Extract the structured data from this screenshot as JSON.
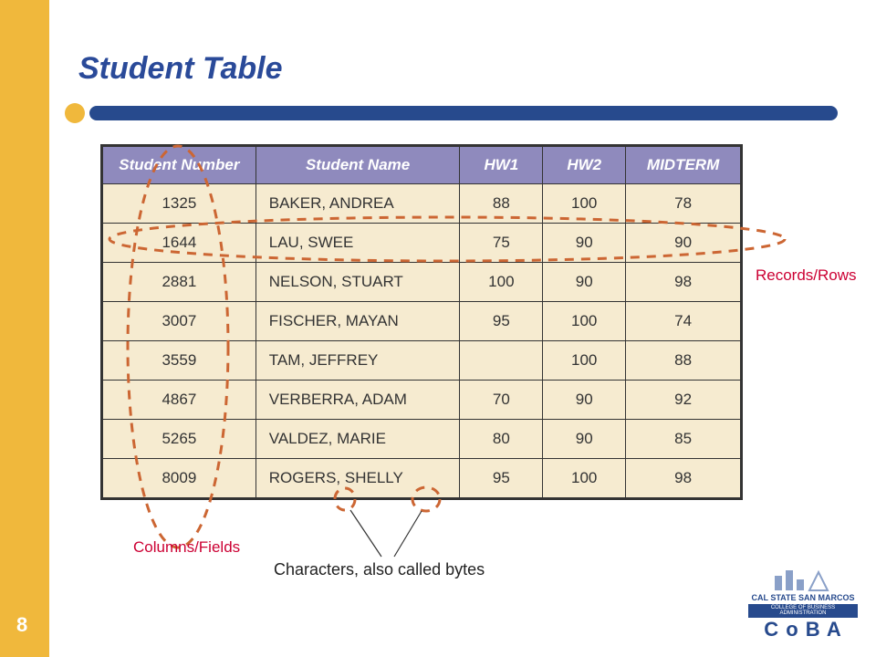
{
  "slide": {
    "title": "Student Table",
    "title_color": "#2a4a99",
    "page_number": "8",
    "sidebar_color": "#f0b83c",
    "underline_color": "#274a8d",
    "underline_accent": "#f0b83c",
    "background": "#ffffff"
  },
  "table": {
    "header_bg": "#8f8abd",
    "header_text_color": "#ffffff",
    "row_bg": "#f6ebd0",
    "border_color": "#333333",
    "cell_font_size": 17,
    "columns": [
      "Student Number",
      "Student Name",
      "HW1",
      "HW2",
      "MIDTERM"
    ],
    "col_widths_pct": [
      24,
      32,
      13,
      13,
      18
    ],
    "rows": [
      [
        "1325",
        "BAKER, ANDREA",
        "88",
        "100",
        "78"
      ],
      [
        "1644",
        "LAU, SWEE",
        "75",
        "90",
        "90"
      ],
      [
        "2881",
        "NELSON, STUART",
        "100",
        "90",
        "98"
      ],
      [
        "3007",
        "FISCHER, MAYAN",
        "95",
        "100",
        "74"
      ],
      [
        "3559",
        "TAM, JEFFREY",
        "",
        "100",
        "88"
      ],
      [
        "4867",
        "VERBERRA, ADAM",
        "70",
        "90",
        "92"
      ],
      [
        "5265",
        "VALDEZ, MARIE",
        "80",
        "90",
        "85"
      ],
      [
        "8009",
        "ROGERS, SHELLY",
        "95",
        "100",
        "98"
      ]
    ]
  },
  "annotations": {
    "rows_label": "Records/Rows",
    "cols_label": "Columns/Fields",
    "bytes_label": "Characters, also called bytes",
    "label_color": "#cc0033",
    "dash_color": "#cc6633",
    "dash_width": 3,
    "dash_pattern": "10,8"
  },
  "logo": {
    "line1": "CAL STATE SAN MARCOS",
    "line2": "COLLEGE OF BUSINESS ADMINISTRATION",
    "line3": "C o B A",
    "color": "#274a8d"
  }
}
